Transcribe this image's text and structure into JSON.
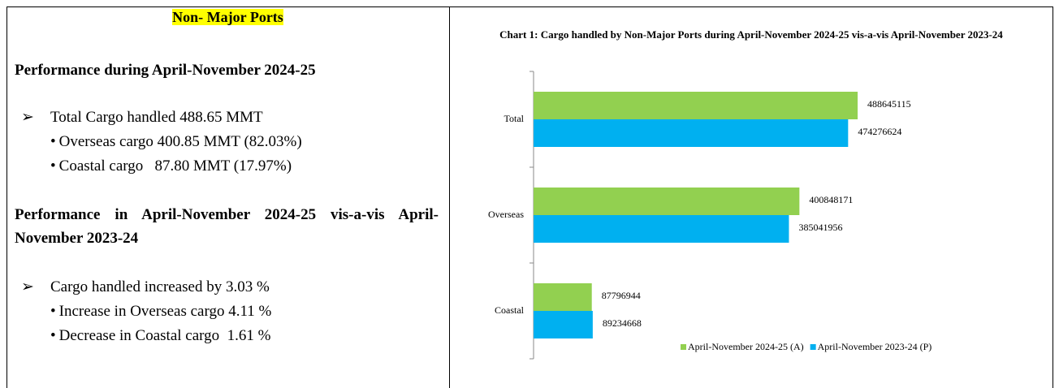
{
  "left": {
    "title": "Non- Major Ports",
    "heading1": "Performance during April-November 2024-25",
    "list1": {
      "main": "Total Cargo handled 488.65 MMT",
      "items": [
        "Overseas cargo 400.85 MMT (82.03%)",
        "Coastal cargo   87.80 MMT (17.97%)"
      ]
    },
    "heading2": "Performance in April-November 2024-25 vis-a-vis April-November 2023-24",
    "list2": {
      "main": "Cargo handled increased by 3.03 %",
      "items": [
        "Increase in Overseas cargo 4.11 %",
        "Decrease in Coastal cargo  1.61 %"
      ]
    }
  },
  "chart_data": {
    "type": "hbar",
    "title": "Chart 1: Cargo handled by Non-Major Ports during April-November 2024-25 vis-a-vis April-November 2023-24",
    "categories": [
      "Total",
      "Overseas",
      "Coastal"
    ],
    "series": [
      {
        "name": "April-November 2024-25 (A)",
        "color": "#92d050",
        "values": [
          488645115,
          400848171,
          87796944
        ]
      },
      {
        "name": "April-November 2023-24 (P)",
        "color": "#00b0f0",
        "values": [
          474276624,
          385041956,
          89234668
        ]
      }
    ],
    "xlim": [
      0,
      600000000
    ],
    "legend": "bottom"
  }
}
